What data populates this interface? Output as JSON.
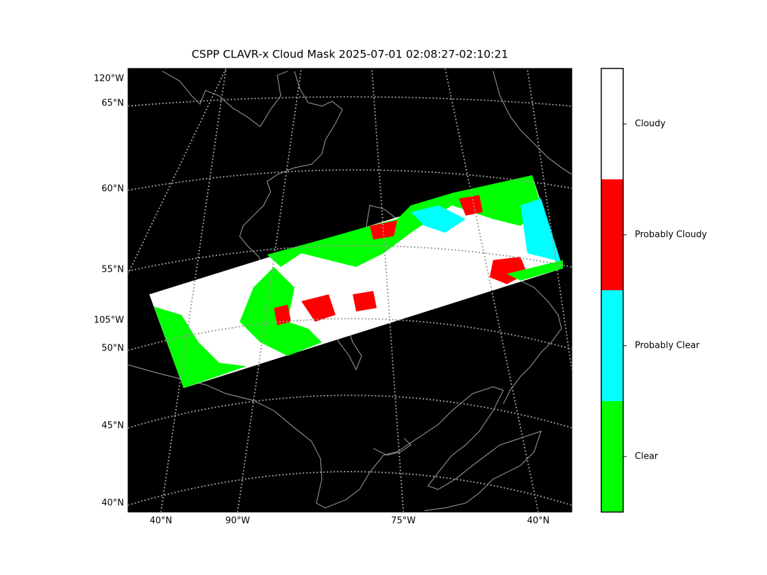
{
  "title": "CSPP CLAVR-x Cloud Mask 2025-07-01 02:08:27-02:10:21",
  "map": {
    "left_labels": [
      "120°W",
      "65°N",
      "60°N",
      "55°N",
      "105°W",
      "50°N",
      "45°N",
      "40°N"
    ],
    "bottom_labels": [
      "40°N",
      "90°W",
      "75°W",
      "40°N"
    ]
  },
  "colorbar": {
    "categories": [
      {
        "label": "Cloudy",
        "color": "#ffffff"
      },
      {
        "label": "Probably Cloudy",
        "color": "#ff0000"
      },
      {
        "label": "Probably Clear",
        "color": "#00ffff"
      },
      {
        "label": "Clear",
        "color": "#00ff00"
      }
    ]
  }
}
